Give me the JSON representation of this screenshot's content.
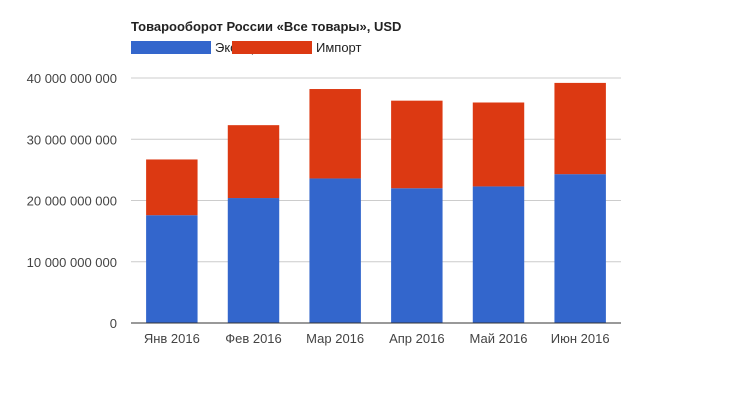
{
  "chart_data": {
    "type": "bar",
    "stacked": true,
    "title": "Товарооборот России «Все товары», USD",
    "categories": [
      "Янв 2016",
      "Фев 2016",
      "Мар 2016",
      "Апр 2016",
      "Май 2016",
      "Июн 2016"
    ],
    "series": [
      {
        "name": "Экспорт",
        "color": "#3366cc",
        "values": [
          17600000000,
          20400000000,
          23600000000,
          22000000000,
          22300000000,
          24300000000
        ]
      },
      {
        "name": "Импорт",
        "color": "#dc3912",
        "values": [
          9100000000,
          11900000000,
          14600000000,
          14300000000,
          13700000000,
          14900000000
        ]
      }
    ],
    "ylim": [
      0,
      40000000000
    ],
    "yticks": [
      "0",
      "10 000 000 000",
      "20 000 000 000",
      "30 000 000 000",
      "40 000 000 000"
    ],
    "xlabel": "",
    "ylabel": "",
    "grid": true,
    "legend": "top-left"
  }
}
